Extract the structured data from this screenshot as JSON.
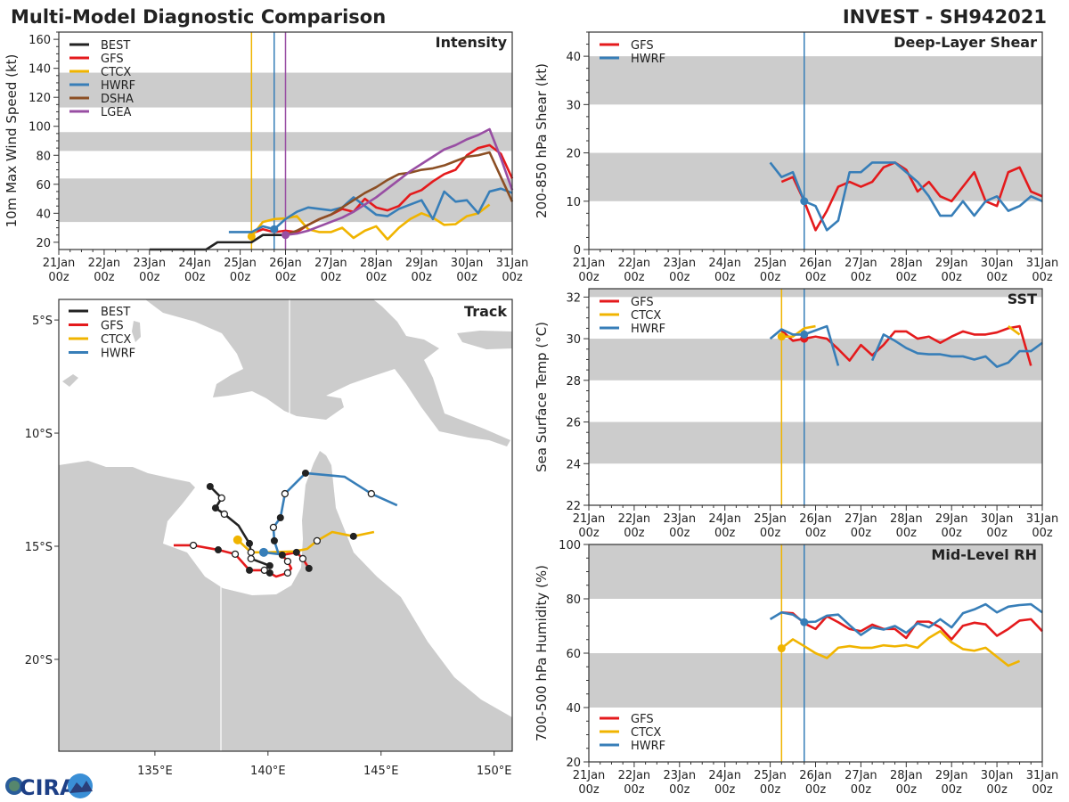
{
  "header": {
    "title": "Multi-Model Diagnostic Comparison",
    "storm": "INVEST - SH942021"
  },
  "logo": {
    "text": "CIRA"
  },
  "colors": {
    "BEST": "#222222",
    "GFS": "#e41a1c",
    "CTCX": "#f0b400",
    "HWRF": "#377eb8",
    "DSHA": "#8c4f24",
    "LGEA": "#984ea3",
    "band": "#cccccc"
  },
  "time_ticks": [
    "21Jan 00z",
    "22Jan 00z",
    "23Jan 00z",
    "24Jan 00z",
    "25Jan 00z",
    "26Jan 00z",
    "27Jan 00z",
    "28Jan 00z",
    "29Jan 00z",
    "30Jan 00z",
    "31Jan 00z"
  ],
  "chart_data": [
    {
      "id": "intensity",
      "type": "line",
      "title": "Intensity",
      "ylabel": "10m Max Wind Speed (kt)",
      "ylim": [
        15,
        165
      ],
      "yticks": [
        20,
        40,
        60,
        80,
        100,
        120,
        140,
        160
      ],
      "xlim": [
        "21Jan 00z",
        "31Jan 00z"
      ],
      "bands": [
        [
          34,
          64
        ],
        [
          83,
          96
        ],
        [
          113,
          137
        ]
      ],
      "legend": "top-left",
      "init_lines": [
        {
          "model": "CTCX",
          "time": "25Jan 06z"
        },
        {
          "model": "HWRF",
          "time": "25Jan 18z"
        },
        {
          "model": "LGEA",
          "time": "26Jan 00z"
        }
      ],
      "series": [
        {
          "name": "BEST",
          "start": "23Jan 00z",
          "interval_hours": 6,
          "values": [
            15,
            15,
            15,
            15,
            15,
            15,
            20,
            20,
            20,
            20,
            25,
            25,
            25
          ]
        },
        {
          "name": "GFS",
          "start": "25Jan 06z",
          "interval_hours": 6,
          "values": [
            26,
            29,
            27,
            28,
            27,
            32,
            36,
            39,
            43,
            41,
            50,
            44,
            42,
            45,
            53,
            56,
            62,
            67,
            70,
            80,
            85,
            87,
            81,
            64
          ]
        },
        {
          "name": "CTCX",
          "start": "25Jan 06z",
          "interval_hours": 6,
          "marker": "25Jan 06z",
          "values": [
            24,
            34,
            36,
            36.5,
            38,
            29,
            27,
            27,
            30,
            23,
            28,
            31,
            22,
            30,
            36,
            40,
            37,
            32,
            32.5,
            38,
            40,
            46
          ]
        },
        {
          "name": "HWRF",
          "start": "24Jan 18z",
          "interval_hours": 6,
          "marker": "25Jan 18z",
          "values": [
            27,
            27,
            27,
            31,
            29,
            36,
            41,
            44,
            43,
            42,
            44,
            51,
            45,
            39,
            38,
            43,
            46,
            49,
            36,
            55,
            48,
            49,
            40,
            55,
            57,
            54
          ]
        },
        {
          "name": "DSHA",
          "start": "26Jan 00z",
          "interval_hours": 6,
          "values": [
            25,
            28,
            32,
            36,
            39,
            44,
            49,
            54,
            58,
            63,
            67,
            68,
            70,
            71,
            73,
            76,
            79,
            80,
            82,
            65,
            48
          ]
        },
        {
          "name": "LGEA",
          "start": "26Jan 00z",
          "interval_hours": 6,
          "marker": "26Jan 00z",
          "values": [
            25,
            26,
            28,
            31,
            34,
            37,
            41,
            46,
            51,
            57,
            63,
            69,
            74,
            79,
            84,
            87,
            91,
            94,
            98,
            78,
            56
          ]
        }
      ]
    },
    {
      "id": "shear",
      "type": "line",
      "title": "Deep-Layer Shear",
      "ylabel": "200-850 hPa Shear (kt)",
      "ylim": [
        0,
        45
      ],
      "yticks": [
        0,
        10,
        20,
        30,
        40
      ],
      "xlim": [
        "21Jan 00z",
        "31Jan 00z"
      ],
      "bands": [
        [
          10,
          20
        ],
        [
          30,
          40
        ]
      ],
      "legend": "top-left",
      "init_lines": [
        {
          "model": "HWRF",
          "time": "25Jan 18z"
        }
      ],
      "series": [
        {
          "name": "GFS",
          "start": "25Jan 06z",
          "interval_hours": 6,
          "values": [
            14,
            15,
            10,
            4,
            8,
            13,
            14,
            13,
            14,
            17,
            18,
            16.5,
            12,
            14,
            11,
            10,
            13,
            16,
            10,
            9,
            16,
            17,
            12,
            11
          ]
        },
        {
          "name": "HWRF",
          "start": "25Jan 00z",
          "interval_hours": 6,
          "marker": "25Jan 18z",
          "values": [
            18,
            15,
            16,
            10,
            9,
            4,
            6,
            16,
            16,
            18,
            18,
            18,
            16,
            14,
            11,
            7,
            7,
            10,
            7,
            10,
            11,
            8,
            9,
            11,
            10
          ]
        }
      ]
    },
    {
      "id": "sst",
      "type": "line",
      "title": "SST",
      "ylabel": "Sea Surface Temp (°C)",
      "ylim": [
        22,
        32.4
      ],
      "yticks": [
        22,
        24,
        26,
        28,
        30,
        32
      ],
      "xlim": [
        "21Jan 00z",
        "31Jan 00z"
      ],
      "bands": [
        [
          24,
          26
        ],
        [
          28,
          30
        ],
        [
          32,
          34
        ]
      ],
      "legend": "top-left",
      "init_lines": [
        {
          "model": "CTCX",
          "time": "25Jan 06z"
        },
        {
          "model": "HWRF",
          "time": "25Jan 18z"
        }
      ],
      "series": [
        {
          "name": "GFS",
          "start": "25Jan 06z",
          "interval_hours": 6,
          "marker": "25Jan 18z",
          "values": [
            30.4,
            29.9,
            30.0,
            30.1,
            30.0,
            29.5,
            28.95,
            29.7,
            29.2,
            29.7,
            30.35,
            30.35,
            30.0,
            30.1,
            29.8,
            30.1,
            30.35,
            30.2,
            30.2,
            30.3,
            30.5,
            30.6,
            28.7
          ]
        },
        {
          "name": "CTCX",
          "start": "25Jan 06z",
          "interval_hours": 6,
          "marker": "25Jan 06z",
          "values": [
            30.1,
            30.1,
            30.5,
            30.6,
            null,
            null,
            null,
            null,
            null,
            null,
            null,
            null,
            null,
            null,
            null,
            null,
            null,
            null,
            null,
            null,
            30.6,
            30.2
          ]
        },
        {
          "name": "HWRF",
          "start": "25Jan 00z",
          "interval_hours": 6,
          "marker": "25Jan 18z",
          "values": [
            30.0,
            30.45,
            30.2,
            30.2,
            30.4,
            30.6,
            28.7,
            null,
            null,
            28.95,
            30.2,
            29.9,
            29.55,
            29.3,
            29.25,
            29.25,
            29.15,
            29.15,
            29.0,
            29.15,
            28.65,
            28.85,
            29.4,
            29.4,
            29.8
          ]
        }
      ]
    },
    {
      "id": "rh",
      "type": "line",
      "title": "Mid-Level RH",
      "ylabel": "700-500 hPa Humidity (%)",
      "ylim": [
        20,
        100
      ],
      "yticks": [
        20,
        40,
        60,
        80,
        100
      ],
      "xlim": [
        "21Jan 00z",
        "31Jan 00z"
      ],
      "bands": [
        [
          40,
          60
        ],
        [
          80,
          100
        ]
      ],
      "legend": "bottom-left",
      "init_lines": [
        {
          "model": "CTCX",
          "time": "25Jan 06z"
        },
        {
          "model": "HWRF",
          "time": "25Jan 18z"
        }
      ],
      "series": [
        {
          "name": "GFS",
          "start": "25Jan 06z",
          "interval_hours": 6,
          "values": [
            75,
            74.7,
            71,
            68.9,
            73.6,
            71.4,
            68.9,
            68.1,
            70.5,
            68.9,
            68.9,
            65.6,
            71.6,
            71.6,
            69.5,
            65.1,
            70.1,
            71.2,
            70.6,
            66.4,
            68.9,
            72,
            72.5,
            68.1
          ]
        },
        {
          "name": "CTCX",
          "start": "25Jan 06z",
          "interval_hours": 6,
          "marker": "25Jan 06z",
          "values": [
            61.8,
            65.1,
            62.6,
            60,
            58.2,
            62,
            62.6,
            62,
            62,
            62.9,
            62.5,
            63,
            62,
            65.6,
            68.1,
            64,
            61.5,
            60.9,
            62,
            58.7,
            55.4,
            57.1
          ]
        },
        {
          "name": "HWRF",
          "start": "25Jan 00z",
          "interval_hours": 6,
          "marker": "25Jan 18z",
          "values": [
            72.5,
            75,
            74.2,
            71.4,
            71.6,
            73.8,
            74.2,
            70.3,
            66.7,
            69.5,
            68.7,
            70,
            67.5,
            71,
            69.5,
            72.5,
            69.5,
            74.7,
            76.1,
            78,
            75,
            77.1,
            77.7,
            78,
            75
          ]
        }
      ]
    },
    {
      "id": "track",
      "type": "map",
      "title": "Track",
      "legend": "top-left",
      "lon_range": [
        130.75,
        150.8
      ],
      "lat_range": [
        -24.06,
        -4.09
      ],
      "lon_ticks": [
        {
          "value": 135,
          "label": "135°E"
        },
        {
          "value": 140,
          "label": "140°E"
        },
        {
          "value": 145,
          "label": "145°E"
        },
        {
          "value": 150,
          "label": "150°E"
        }
      ],
      "lat_ticks": [
        {
          "value": -5,
          "label": "5°S"
        },
        {
          "value": -10,
          "label": "10°S"
        },
        {
          "value": -15,
          "label": "15°S"
        },
        {
          "value": -20,
          "label": "20°S"
        }
      ],
      "tracks": [
        {
          "name": "BEST",
          "points": [
            [
              137.44,
              -12.36,
              "f"
            ],
            [
              137.95,
              -12.87,
              "o"
            ],
            [
              137.68,
              -13.31,
              "f"
            ],
            [
              138.07,
              -13.58,
              "o"
            ],
            [
              138.7,
              -14.09,
              ""
            ],
            [
              139.18,
              -14.88,
              "f"
            ],
            [
              139.25,
              -15.27,
              "o"
            ],
            [
              139.25,
              -15.55,
              "o"
            ],
            [
              140.08,
              -15.86,
              "f"
            ]
          ]
        },
        {
          "name": "GFS",
          "points": [
            [
              135.83,
              -14.96,
              ""
            ],
            [
              136.7,
              -14.96,
              "o"
            ],
            [
              137.8,
              -15.16,
              "f"
            ],
            [
              138.55,
              -15.35,
              "o"
            ],
            [
              139.18,
              -16.06,
              "f"
            ],
            [
              139.84,
              -16.06,
              "o"
            ],
            [
              140.08,
              -16.18,
              "f"
            ],
            [
              140.36,
              -16.34,
              ""
            ],
            [
              140.87,
              -16.18,
              "o"
            ],
            [
              141.03,
              -15.98,
              ""
            ],
            [
              140.87,
              -15.67,
              "o"
            ],
            [
              140.63,
              -15.39,
              "f"
            ],
            [
              141.26,
              -15.27,
              "f"
            ],
            [
              141.54,
              -15.55,
              "o"
            ],
            [
              141.81,
              -15.98,
              "f"
            ]
          ]
        },
        {
          "name": "CTCX",
          "points": [
            [
              138.66,
              -14.72,
              "s"
            ],
            [
              139.25,
              -15.27,
              ""
            ],
            [
              139.96,
              -15.27,
              ""
            ],
            [
              141.14,
              -15.23,
              ""
            ],
            [
              141.73,
              -15.12,
              ""
            ],
            [
              142.17,
              -14.76,
              "o"
            ],
            [
              142.84,
              -14.37,
              ""
            ],
            [
              143.78,
              -14.56,
              "f"
            ],
            [
              144.69,
              -14.37,
              ""
            ]
          ]
        },
        {
          "name": "HWRF",
          "points": [
            [
              139.81,
              -15.27,
              "s"
            ],
            [
              140.47,
              -15.35,
              ""
            ],
            [
              140.28,
              -14.76,
              "f"
            ],
            [
              140.24,
              -14.17,
              "o"
            ],
            [
              140.55,
              -13.74,
              "f"
            ],
            [
              140.75,
              -12.68,
              "o"
            ],
            [
              141.66,
              -11.77,
              "f"
            ],
            [
              143.39,
              -11.93,
              ""
            ],
            [
              144.57,
              -12.68,
              "o"
            ],
            [
              145.71,
              -13.19,
              ""
            ]
          ]
        }
      ]
    }
  ]
}
